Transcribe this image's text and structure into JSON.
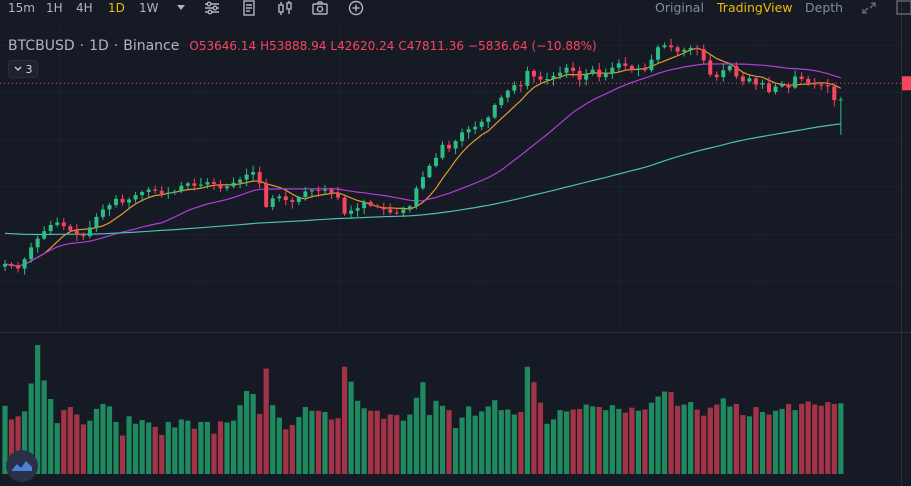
{
  "toolbar": {
    "timeframes": [
      "15m",
      "1H",
      "4H",
      "1D",
      "1W"
    ],
    "active_timeframe": "1D",
    "tool_icons": [
      "chevron-down-icon",
      "sliders-icon",
      "note-icon",
      "candles-icon",
      "camera-icon",
      "plus-circle-icon"
    ],
    "views": [
      "Original",
      "TradingView",
      "Depth"
    ],
    "active_view": "TradingView"
  },
  "legend": {
    "symbol": "BTCBUSD",
    "sep1": "·",
    "interval": "1D",
    "sep2": "·",
    "exchange": "Binance",
    "o_label": "O",
    "o_value": "53646.14",
    "h_label": "H",
    "h_value": "53888.94",
    "l_label": "L",
    "l_value": "42620.24",
    "c_label": "C",
    "c_value": "47811.36",
    "change": "−5836.64 (−10.88%)"
  },
  "indicator_toggle": {
    "count": "3"
  },
  "colors": {
    "background": "#161a25",
    "up": "#2ebd85",
    "down": "#f6465d",
    "up_volume": "#1f8a5f",
    "down_volume": "#a33447",
    "ma_short": "#e39b2d",
    "ma_mid": "#b43cd8",
    "ma_long": "#4dbfb2",
    "accent": "#f0b90b"
  },
  "chart_data": {
    "type": "candlestick",
    "interval": "1D",
    "ylim": [
      40000,
      70000
    ],
    "closes": [
      47000,
      46700,
      46300,
      47800,
      49700,
      51100,
      52300,
      53300,
      53700,
      53100,
      52400,
      51800,
      51500,
      52900,
      54600,
      55800,
      56500,
      57500,
      56900,
      57400,
      58100,
      58600,
      59000,
      58800,
      58300,
      58500,
      58700,
      59600,
      60000,
      59600,
      59800,
      60200,
      59900,
      59200,
      59500,
      60100,
      60600,
      61400,
      61800,
      60000,
      56200,
      57600,
      57900,
      57300,
      57000,
      57800,
      58700,
      58900,
      58800,
      59000,
      58400,
      57700,
      55100,
      55600,
      56000,
      57000,
      56400,
      56200,
      55800,
      55300,
      55200,
      55800,
      56300,
      59200,
      61000,
      62800,
      64100,
      66200,
      65600,
      66800,
      68200,
      68700,
      69100,
      69900,
      70600,
      72600,
      73800,
      74900,
      75800,
      75700,
      78100,
      77200,
      76700,
      76800,
      77300,
      77800,
      78600,
      78100,
      76700,
      77600,
      78300,
      77100,
      77700,
      78600,
      79300,
      78900,
      78300,
      78500,
      78200,
      79900,
      81900,
      82200,
      81900,
      81200,
      81500,
      81800,
      81600,
      79800,
      77500,
      77100,
      78200,
      78900,
      77200,
      76400,
      76900,
      75900,
      76100,
      74700,
      75600,
      75900,
      75400,
      77200,
      76800,
      76100,
      75900,
      75800,
      75600,
      73400,
      73500
    ],
    "volumes": [
      110,
      88,
      93,
      101,
      146,
      208,
      151,
      121,
      82,
      103,
      108,
      96,
      80,
      86,
      105,
      113,
      109,
      84,
      62,
      93,
      81,
      87,
      83,
      76,
      63,
      84,
      75,
      88,
      86,
      73,
      84,
      84,
      65,
      85,
      83,
      86,
      111,
      134,
      129,
      97,
      170,
      111,
      91,
      72,
      79,
      92,
      108,
      102,
      102,
      100,
      88,
      90,
      173,
      149,
      118,
      106,
      102,
      102,
      89,
      96,
      95,
      86,
      96,
      123,
      148,
      95,
      118,
      110,
      103,
      74,
      91,
      109,
      94,
      101,
      109,
      119,
      103,
      104,
      96,
      100,
      173,
      148,
      115,
      81,
      88,
      103,
      101,
      104,
      105,
      112,
      109,
      108,
      103,
      111,
      105,
      99,
      107,
      102,
      104,
      115,
      125,
      133,
      132,
      110,
      112,
      116,
      104,
      94,
      107,
      112,
      122,
      109,
      113,
      95,
      93,
      108,
      100,
      96,
      102,
      105,
      113,
      103,
      113,
      117,
      112,
      110,
      116,
      113,
      114
    ]
  }
}
